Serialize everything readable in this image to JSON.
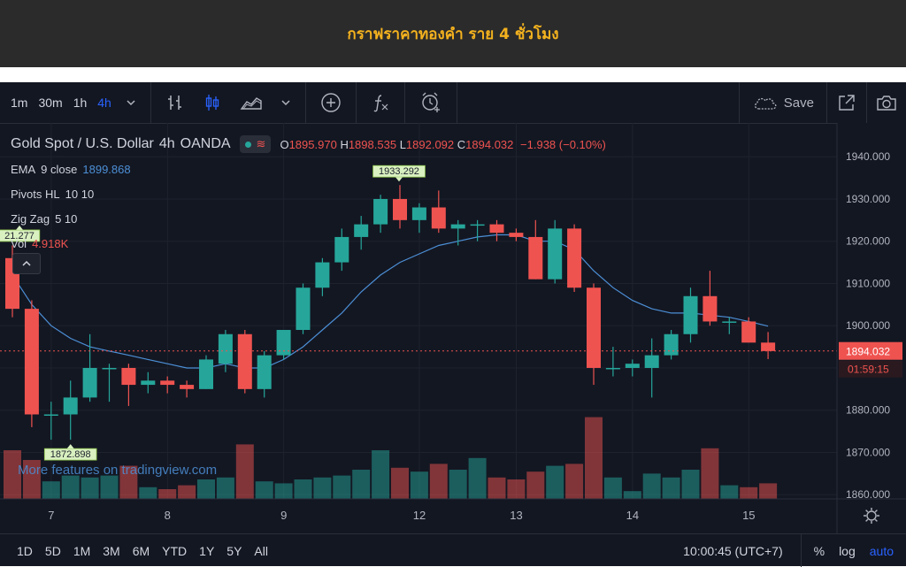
{
  "banner": {
    "title": "กราฟราคาทองคำ ราย 4 ชั่วโมง"
  },
  "toolbar": {
    "timeframes": [
      "1m",
      "30m",
      "1h",
      "4h"
    ],
    "active_timeframe": "4h",
    "icons": [
      "chevron-down-icon",
      "bar-chart-icon",
      "candles-icon",
      "area-chart-icon",
      "chevron-down-icon",
      "plus-circle-icon",
      "indicator-fx-icon",
      "alarm-icon",
      "cloud-icon",
      "fullscreen-icon",
      "camera-icon"
    ],
    "save_label": "Save"
  },
  "legend": {
    "symbol": "Gold Spot / U.S. Dollar",
    "interval": "4h",
    "source": "OANDA",
    "open_label": "O",
    "open": "1895.970",
    "high_label": "H",
    "high": "1898.535",
    "low_label": "L",
    "low": "1892.092",
    "close_label": "C",
    "close": "1894.032",
    "change": "−1.938 (−0.10%)",
    "indicators": [
      {
        "name": "EMA",
        "params": "9 close",
        "value": "1899.868"
      },
      {
        "name": "Pivots HL",
        "params": "10 10",
        "value": ""
      },
      {
        "name": "Zig Zag",
        "params": "5 10",
        "value": ""
      },
      {
        "name": "Vol",
        "params": "",
        "value": "4.918K"
      }
    ]
  },
  "watermark": "More features on tradingview.com",
  "bottombar": {
    "ranges": [
      "1D",
      "5D",
      "1M",
      "3M",
      "6M",
      "YTD",
      "1Y",
      "5Y",
      "All"
    ],
    "time": "10:00:45 (UTC+7)",
    "percent_label": "%",
    "log_label": "log",
    "auto_label": "auto"
  },
  "colors": {
    "up": "#26a69a",
    "down": "#ef5350",
    "ema": "#4c8fd6",
    "background": "#131722",
    "banner_text": "#f4b21e"
  },
  "chart_data": {
    "type": "candlestick",
    "y_ticks": [
      "1940.000",
      "1930.000",
      "1920.000",
      "1910.000",
      "1900.000",
      "1890.000",
      "1880.000",
      "1870.000",
      "1860.000"
    ],
    "ylim": [
      1859,
      1948
    ],
    "x_ticks": [
      "7",
      "8",
      "9",
      "12",
      "13",
      "14",
      "15"
    ],
    "last_price": "1894.032",
    "countdown": "01:59:15",
    "pivot_labels": [
      "1933.292",
      "1872.898",
      "21.277"
    ],
    "candles": [
      {
        "o": 1916.0,
        "h": 1919.0,
        "l": 1902.0,
        "c": 1904.0,
        "v": 0.5
      },
      {
        "o": 1904.0,
        "h": 1906.0,
        "l": 1876.0,
        "c": 1879.0,
        "v": 0.4
      },
      {
        "o": 1879.0,
        "h": 1882.0,
        "l": 1873.0,
        "c": 1879.0,
        "v": 0.18
      },
      {
        "o": 1879.0,
        "h": 1887.0,
        "l": 1873.0,
        "c": 1883.0,
        "v": 0.24
      },
      {
        "o": 1883.0,
        "h": 1898.0,
        "l": 1882.0,
        "c": 1890.0,
        "v": 0.22
      },
      {
        "o": 1890.0,
        "h": 1891.0,
        "l": 1882.0,
        "c": 1890.0,
        "v": 0.24
      },
      {
        "o": 1890.0,
        "h": 1891.0,
        "l": 1881.0,
        "c": 1886.0,
        "v": 0.34
      },
      {
        "o": 1886.0,
        "h": 1889.0,
        "l": 1884.0,
        "c": 1887.0,
        "v": 0.12
      },
      {
        "o": 1887.0,
        "h": 1888.0,
        "l": 1884.0,
        "c": 1886.0,
        "v": 0.1
      },
      {
        "o": 1886.0,
        "h": 1887.0,
        "l": 1883.0,
        "c": 1885.0,
        "v": 0.14
      },
      {
        "o": 1885.0,
        "h": 1893.0,
        "l": 1885.0,
        "c": 1892.0,
        "v": 0.2
      },
      {
        "o": 1891.0,
        "h": 1899.0,
        "l": 1889.0,
        "c": 1898.0,
        "v": 0.22
      },
      {
        "o": 1898.0,
        "h": 1899.0,
        "l": 1884.0,
        "c": 1885.0,
        "v": 0.56
      },
      {
        "o": 1885.0,
        "h": 1894.0,
        "l": 1883.0,
        "c": 1893.0,
        "v": 0.18
      },
      {
        "o": 1893.0,
        "h": 1899.0,
        "l": 1892.0,
        "c": 1899.0,
        "v": 0.16
      },
      {
        "o": 1899.0,
        "h": 1910.0,
        "l": 1898.0,
        "c": 1909.0,
        "v": 0.2
      },
      {
        "o": 1909.0,
        "h": 1916.0,
        "l": 1907.0,
        "c": 1915.0,
        "v": 0.22
      },
      {
        "o": 1915.0,
        "h": 1923.0,
        "l": 1913.0,
        "c": 1921.0,
        "v": 0.24
      },
      {
        "o": 1921.0,
        "h": 1926.0,
        "l": 1918.0,
        "c": 1924.0,
        "v": 0.3
      },
      {
        "o": 1924.0,
        "h": 1931.0,
        "l": 1922.0,
        "c": 1930.0,
        "v": 0.5
      },
      {
        "o": 1930.0,
        "h": 1933.3,
        "l": 1923.0,
        "c": 1925.0,
        "v": 0.32
      },
      {
        "o": 1925.0,
        "h": 1929.0,
        "l": 1922.0,
        "c": 1928.0,
        "v": 0.28
      },
      {
        "o": 1928.0,
        "h": 1932.0,
        "l": 1922.0,
        "c": 1923.0,
        "v": 0.36
      },
      {
        "o": 1923.0,
        "h": 1925.0,
        "l": 1919.0,
        "c": 1924.0,
        "v": 0.3
      },
      {
        "o": 1924.0,
        "h": 1925.0,
        "l": 1920.0,
        "c": 1924.0,
        "v": 0.42
      },
      {
        "o": 1924.0,
        "h": 1925.0,
        "l": 1920.0,
        "c": 1922.0,
        "v": 0.22
      },
      {
        "o": 1922.0,
        "h": 1923.0,
        "l": 1920.0,
        "c": 1921.0,
        "v": 0.2
      },
      {
        "o": 1921.0,
        "h": 1925.0,
        "l": 1911.0,
        "c": 1911.0,
        "v": 0.28
      },
      {
        "o": 1911.0,
        "h": 1925.0,
        "l": 1910.0,
        "c": 1923.0,
        "v": 0.34
      },
      {
        "o": 1923.0,
        "h": 1924.0,
        "l": 1908.0,
        "c": 1909.0,
        "v": 0.36
      },
      {
        "o": 1909.0,
        "h": 1910.0,
        "l": 1886.0,
        "c": 1890.0,
        "v": 0.84
      },
      {
        "o": 1890.0,
        "h": 1895.0,
        "l": 1888.0,
        "c": 1890.0,
        "v": 0.22
      },
      {
        "o": 1890.0,
        "h": 1892.0,
        "l": 1888.0,
        "c": 1891.0,
        "v": 0.08
      },
      {
        "o": 1890.0,
        "h": 1897.0,
        "l": 1883.0,
        "c": 1893.0,
        "v": 0.26
      },
      {
        "o": 1893.0,
        "h": 1899.0,
        "l": 1892.0,
        "c": 1898.0,
        "v": 0.22
      },
      {
        "o": 1898.0,
        "h": 1909.0,
        "l": 1896.0,
        "c": 1907.0,
        "v": 0.3
      },
      {
        "o": 1907.0,
        "h": 1913.0,
        "l": 1900.0,
        "c": 1901.0,
        "v": 0.52
      },
      {
        "o": 1901.0,
        "h": 1902.0,
        "l": 1898.0,
        "c": 1901.0,
        "v": 0.14
      },
      {
        "o": 1901.0,
        "h": 1902.0,
        "l": 1896.0,
        "c": 1896.0,
        "v": 0.12
      },
      {
        "o": 1896.0,
        "h": 1898.5,
        "l": 1892.1,
        "c": 1894.0,
        "v": 0.16
      }
    ],
    "ema": [
      1912,
      1905,
      1900,
      1897,
      1895,
      1894,
      1893,
      1892,
      1891,
      1890,
      1890,
      1891,
      1890,
      1890,
      1892,
      1895,
      1899,
      1903,
      1908,
      1912,
      1915,
      1917,
      1919,
      1920,
      1921,
      1921.5,
      1921.5,
      1920,
      1920,
      1918,
      1913,
      1909,
      1906,
      1904,
      1903,
      1903,
      1902.5,
      1902,
      1901,
      1899.9
    ]
  }
}
